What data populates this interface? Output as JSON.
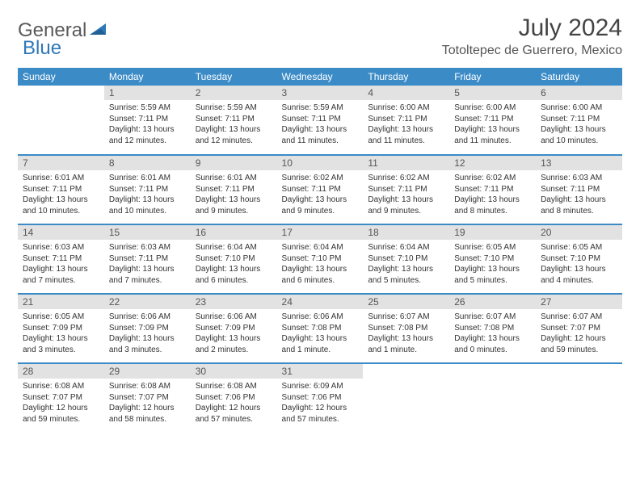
{
  "brand": {
    "part1": "General",
    "part2": "Blue"
  },
  "title": "July 2024",
  "location": "Totoltepec de Guerrero, Mexico",
  "colors": {
    "header_bg": "#3b8bc7",
    "header_text": "#ffffff",
    "daynum_bg": "#e2e2e2",
    "border": "#3b8bc7",
    "brand_gray": "#5a5a5a",
    "brand_blue": "#2f78b7"
  },
  "dow": [
    "Sunday",
    "Monday",
    "Tuesday",
    "Wednesday",
    "Thursday",
    "Friday",
    "Saturday"
  ],
  "weeks": [
    [
      {
        "n": "",
        "sr": "",
        "ss": "",
        "dl": "",
        "empty": true
      },
      {
        "n": "1",
        "sr": "Sunrise: 5:59 AM",
        "ss": "Sunset: 7:11 PM",
        "dl": "Daylight: 13 hours and 12 minutes."
      },
      {
        "n": "2",
        "sr": "Sunrise: 5:59 AM",
        "ss": "Sunset: 7:11 PM",
        "dl": "Daylight: 13 hours and 12 minutes."
      },
      {
        "n": "3",
        "sr": "Sunrise: 5:59 AM",
        "ss": "Sunset: 7:11 PM",
        "dl": "Daylight: 13 hours and 11 minutes."
      },
      {
        "n": "4",
        "sr": "Sunrise: 6:00 AM",
        "ss": "Sunset: 7:11 PM",
        "dl": "Daylight: 13 hours and 11 minutes."
      },
      {
        "n": "5",
        "sr": "Sunrise: 6:00 AM",
        "ss": "Sunset: 7:11 PM",
        "dl": "Daylight: 13 hours and 11 minutes."
      },
      {
        "n": "6",
        "sr": "Sunrise: 6:00 AM",
        "ss": "Sunset: 7:11 PM",
        "dl": "Daylight: 13 hours and 10 minutes."
      }
    ],
    [
      {
        "n": "7",
        "sr": "Sunrise: 6:01 AM",
        "ss": "Sunset: 7:11 PM",
        "dl": "Daylight: 13 hours and 10 minutes."
      },
      {
        "n": "8",
        "sr": "Sunrise: 6:01 AM",
        "ss": "Sunset: 7:11 PM",
        "dl": "Daylight: 13 hours and 10 minutes."
      },
      {
        "n": "9",
        "sr": "Sunrise: 6:01 AM",
        "ss": "Sunset: 7:11 PM",
        "dl": "Daylight: 13 hours and 9 minutes."
      },
      {
        "n": "10",
        "sr": "Sunrise: 6:02 AM",
        "ss": "Sunset: 7:11 PM",
        "dl": "Daylight: 13 hours and 9 minutes."
      },
      {
        "n": "11",
        "sr": "Sunrise: 6:02 AM",
        "ss": "Sunset: 7:11 PM",
        "dl": "Daylight: 13 hours and 9 minutes."
      },
      {
        "n": "12",
        "sr": "Sunrise: 6:02 AM",
        "ss": "Sunset: 7:11 PM",
        "dl": "Daylight: 13 hours and 8 minutes."
      },
      {
        "n": "13",
        "sr": "Sunrise: 6:03 AM",
        "ss": "Sunset: 7:11 PM",
        "dl": "Daylight: 13 hours and 8 minutes."
      }
    ],
    [
      {
        "n": "14",
        "sr": "Sunrise: 6:03 AM",
        "ss": "Sunset: 7:11 PM",
        "dl": "Daylight: 13 hours and 7 minutes."
      },
      {
        "n": "15",
        "sr": "Sunrise: 6:03 AM",
        "ss": "Sunset: 7:11 PM",
        "dl": "Daylight: 13 hours and 7 minutes."
      },
      {
        "n": "16",
        "sr": "Sunrise: 6:04 AM",
        "ss": "Sunset: 7:10 PM",
        "dl": "Daylight: 13 hours and 6 minutes."
      },
      {
        "n": "17",
        "sr": "Sunrise: 6:04 AM",
        "ss": "Sunset: 7:10 PM",
        "dl": "Daylight: 13 hours and 6 minutes."
      },
      {
        "n": "18",
        "sr": "Sunrise: 6:04 AM",
        "ss": "Sunset: 7:10 PM",
        "dl": "Daylight: 13 hours and 5 minutes."
      },
      {
        "n": "19",
        "sr": "Sunrise: 6:05 AM",
        "ss": "Sunset: 7:10 PM",
        "dl": "Daylight: 13 hours and 5 minutes."
      },
      {
        "n": "20",
        "sr": "Sunrise: 6:05 AM",
        "ss": "Sunset: 7:10 PM",
        "dl": "Daylight: 13 hours and 4 minutes."
      }
    ],
    [
      {
        "n": "21",
        "sr": "Sunrise: 6:05 AM",
        "ss": "Sunset: 7:09 PM",
        "dl": "Daylight: 13 hours and 3 minutes."
      },
      {
        "n": "22",
        "sr": "Sunrise: 6:06 AM",
        "ss": "Sunset: 7:09 PM",
        "dl": "Daylight: 13 hours and 3 minutes."
      },
      {
        "n": "23",
        "sr": "Sunrise: 6:06 AM",
        "ss": "Sunset: 7:09 PM",
        "dl": "Daylight: 13 hours and 2 minutes."
      },
      {
        "n": "24",
        "sr": "Sunrise: 6:06 AM",
        "ss": "Sunset: 7:08 PM",
        "dl": "Daylight: 13 hours and 1 minute."
      },
      {
        "n": "25",
        "sr": "Sunrise: 6:07 AM",
        "ss": "Sunset: 7:08 PM",
        "dl": "Daylight: 13 hours and 1 minute."
      },
      {
        "n": "26",
        "sr": "Sunrise: 6:07 AM",
        "ss": "Sunset: 7:08 PM",
        "dl": "Daylight: 13 hours and 0 minutes."
      },
      {
        "n": "27",
        "sr": "Sunrise: 6:07 AM",
        "ss": "Sunset: 7:07 PM",
        "dl": "Daylight: 12 hours and 59 minutes."
      }
    ],
    [
      {
        "n": "28",
        "sr": "Sunrise: 6:08 AM",
        "ss": "Sunset: 7:07 PM",
        "dl": "Daylight: 12 hours and 59 minutes."
      },
      {
        "n": "29",
        "sr": "Sunrise: 6:08 AM",
        "ss": "Sunset: 7:07 PM",
        "dl": "Daylight: 12 hours and 58 minutes."
      },
      {
        "n": "30",
        "sr": "Sunrise: 6:08 AM",
        "ss": "Sunset: 7:06 PM",
        "dl": "Daylight: 12 hours and 57 minutes."
      },
      {
        "n": "31",
        "sr": "Sunrise: 6:09 AM",
        "ss": "Sunset: 7:06 PM",
        "dl": "Daylight: 12 hours and 57 minutes."
      },
      {
        "n": "",
        "sr": "",
        "ss": "",
        "dl": "",
        "empty": true
      },
      {
        "n": "",
        "sr": "",
        "ss": "",
        "dl": "",
        "empty": true
      },
      {
        "n": "",
        "sr": "",
        "ss": "",
        "dl": "",
        "empty": true
      }
    ]
  ]
}
